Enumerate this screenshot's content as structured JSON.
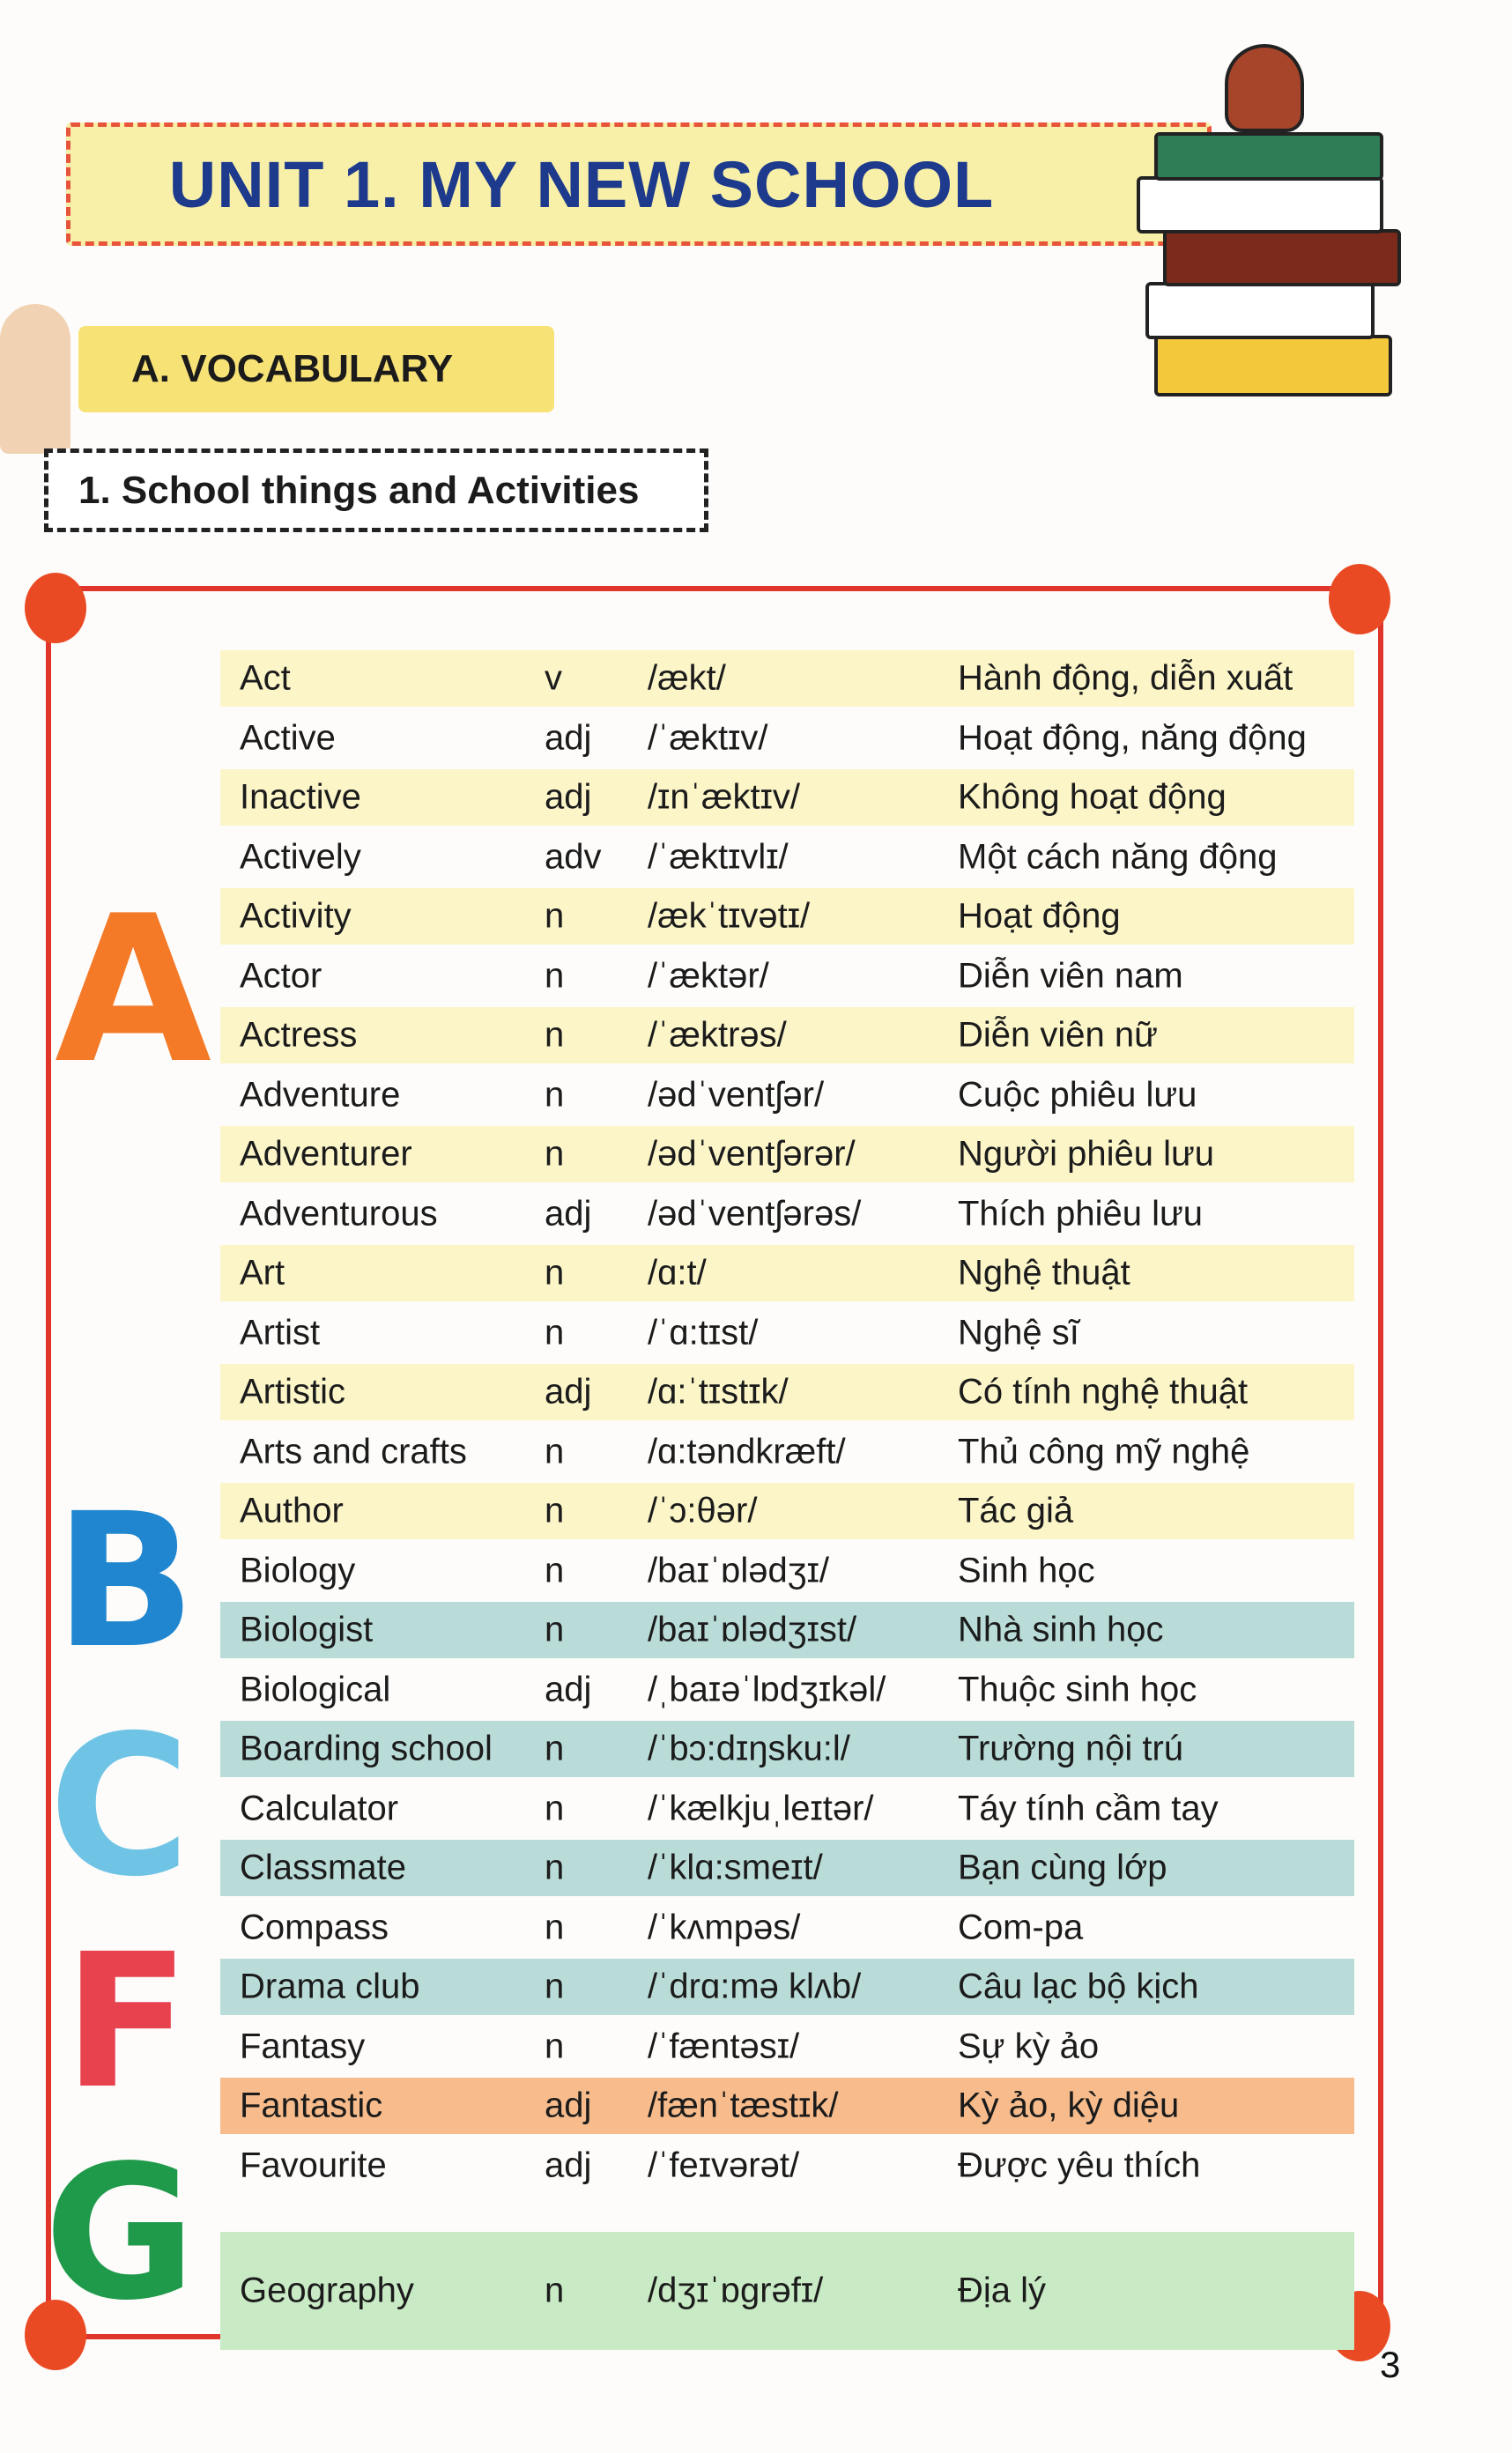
{
  "header": {
    "title": "UNIT 1. MY NEW SCHOOL",
    "section": "A. VOCABULARY",
    "subsection": "1. School things and Activities"
  },
  "decorations": {
    "letters": [
      "A",
      "B",
      "C",
      "F",
      "G"
    ],
    "colors": {
      "A": "#f47a28",
      "B": "#1f86cf",
      "C": "#6fc4e6",
      "F": "#e8424f",
      "G": "#1f9a4a"
    }
  },
  "row_colors": {
    "yellow": "#fbf5c8",
    "blue": "#b9dcd8",
    "orange": "#f8bc8c",
    "green": "#c8eac4",
    "none": "transparent"
  },
  "vocabulary": [
    {
      "word": "Act",
      "pos": "v",
      "ipa": "/ækt/",
      "meaning": "Hành động, diễn xuất",
      "bg": "yellow"
    },
    {
      "word": "Active",
      "pos": "adj",
      "ipa": "/ˈæktɪv/",
      "meaning": "Hoạt động, năng động",
      "bg": "none"
    },
    {
      "word": "Inactive",
      "pos": "adj",
      "ipa": "/ɪnˈæktɪv/",
      "meaning": "Không hoạt động",
      "bg": "yellow"
    },
    {
      "word": "Actively",
      "pos": "adv",
      "ipa": "/ˈæktɪvlɪ/",
      "meaning": "Một cách năng động",
      "bg": "none"
    },
    {
      "word": "Activity",
      "pos": "n",
      "ipa": "/ækˈtɪvətɪ/",
      "meaning": "Hoạt động",
      "bg": "yellow"
    },
    {
      "word": "Actor",
      "pos": "n",
      "ipa": "/ˈæktər/",
      "meaning": "Diễn viên nam",
      "bg": "none"
    },
    {
      "word": "Actress",
      "pos": "n",
      "ipa": "/ˈæktrəs/",
      "meaning": "Diễn viên nữ",
      "bg": "yellow"
    },
    {
      "word": "Adventure",
      "pos": "n",
      "ipa": "/ədˈventʃər/",
      "meaning": "Cuộc phiêu lưu",
      "bg": "none"
    },
    {
      "word": "Adventurer",
      "pos": "n",
      "ipa": "/ədˈventʃərər/",
      "meaning": "Người phiêu lưu",
      "bg": "yellow"
    },
    {
      "word": "Adventurous",
      "pos": "adj",
      "ipa": "/ədˈventʃərəs/",
      "meaning": "Thích phiêu lưu",
      "bg": "none"
    },
    {
      "word": "Art",
      "pos": "n",
      "ipa": "/ɑ:t/",
      "meaning": "Nghệ thuật",
      "bg": "yellow"
    },
    {
      "word": "Artist",
      "pos": "n",
      "ipa": "/ˈɑ:tɪst/",
      "meaning": "Nghệ sĩ",
      "bg": "none"
    },
    {
      "word": "Artistic",
      "pos": "adj",
      "ipa": "/ɑ:ˈtɪstɪk/",
      "meaning": "Có tính nghệ thuật",
      "bg": "yellow"
    },
    {
      "word": "Arts and crafts",
      "pos": "n",
      "ipa": "/ɑ:təndkræft/",
      "meaning": "Thủ công mỹ nghệ",
      "bg": "none"
    },
    {
      "word": "Author",
      "pos": "n",
      "ipa": "/ˈɔ:θər/",
      "meaning": "Tác giả",
      "bg": "yellow"
    },
    {
      "word": "Biology",
      "pos": "n",
      "ipa": "/baɪˈɒlədʒɪ/",
      "meaning": "Sinh học",
      "bg": "none"
    },
    {
      "word": "Biologist",
      "pos": "n",
      "ipa": "/baɪˈɒlədʒɪst/",
      "meaning": "Nhà sinh học",
      "bg": "blue"
    },
    {
      "word": "Biological",
      "pos": "adj",
      "ipa": "/ˌbaɪəˈlɒdʒɪkəl/",
      "meaning": "Thuộc sinh học",
      "bg": "none"
    },
    {
      "word": "Boarding school",
      "pos": "n",
      "ipa": "/ˈbɔ:dɪŋsku:l/",
      "meaning": "Trường nội trú",
      "bg": "blue"
    },
    {
      "word": "Calculator",
      "pos": "n",
      "ipa": "/ˈkælkjuˌleɪtər/",
      "meaning": "Táy tính cầm tay",
      "bg": "none"
    },
    {
      "word": "Classmate",
      "pos": "n",
      "ipa": "/ˈklɑ:smeɪt/",
      "meaning": "Bạn cùng lớp",
      "bg": "blue"
    },
    {
      "word": "Compass",
      "pos": "n",
      "ipa": "/ˈkʌmpəs/",
      "meaning": "Com-pa",
      "bg": "none"
    },
    {
      "word": "Drama club",
      "pos": "n",
      "ipa": "/ˈdrɑ:mə klʌb/",
      "meaning": "Câu lạc bộ kịch",
      "bg": "blue"
    },
    {
      "word": "Fantasy",
      "pos": "n",
      "ipa": "/ˈfæntəsɪ/",
      "meaning": "Sự kỳ ảo",
      "bg": "none"
    },
    {
      "word": "Fantastic",
      "pos": "adj",
      "ipa": "/fænˈtæstɪk/",
      "meaning": "Kỳ ảo, kỳ diệu",
      "bg": "orange"
    },
    {
      "word": "Favourite",
      "pos": "adj",
      "ipa": "/ˈfeɪvərət/",
      "meaning": "Được yêu thích",
      "bg": "none"
    },
    {
      "word": "Geography",
      "pos": "n",
      "ipa": "/dʒɪˈɒgrəfɪ/",
      "meaning": "Địa lý",
      "bg": "green"
    }
  ],
  "page_number": "3"
}
